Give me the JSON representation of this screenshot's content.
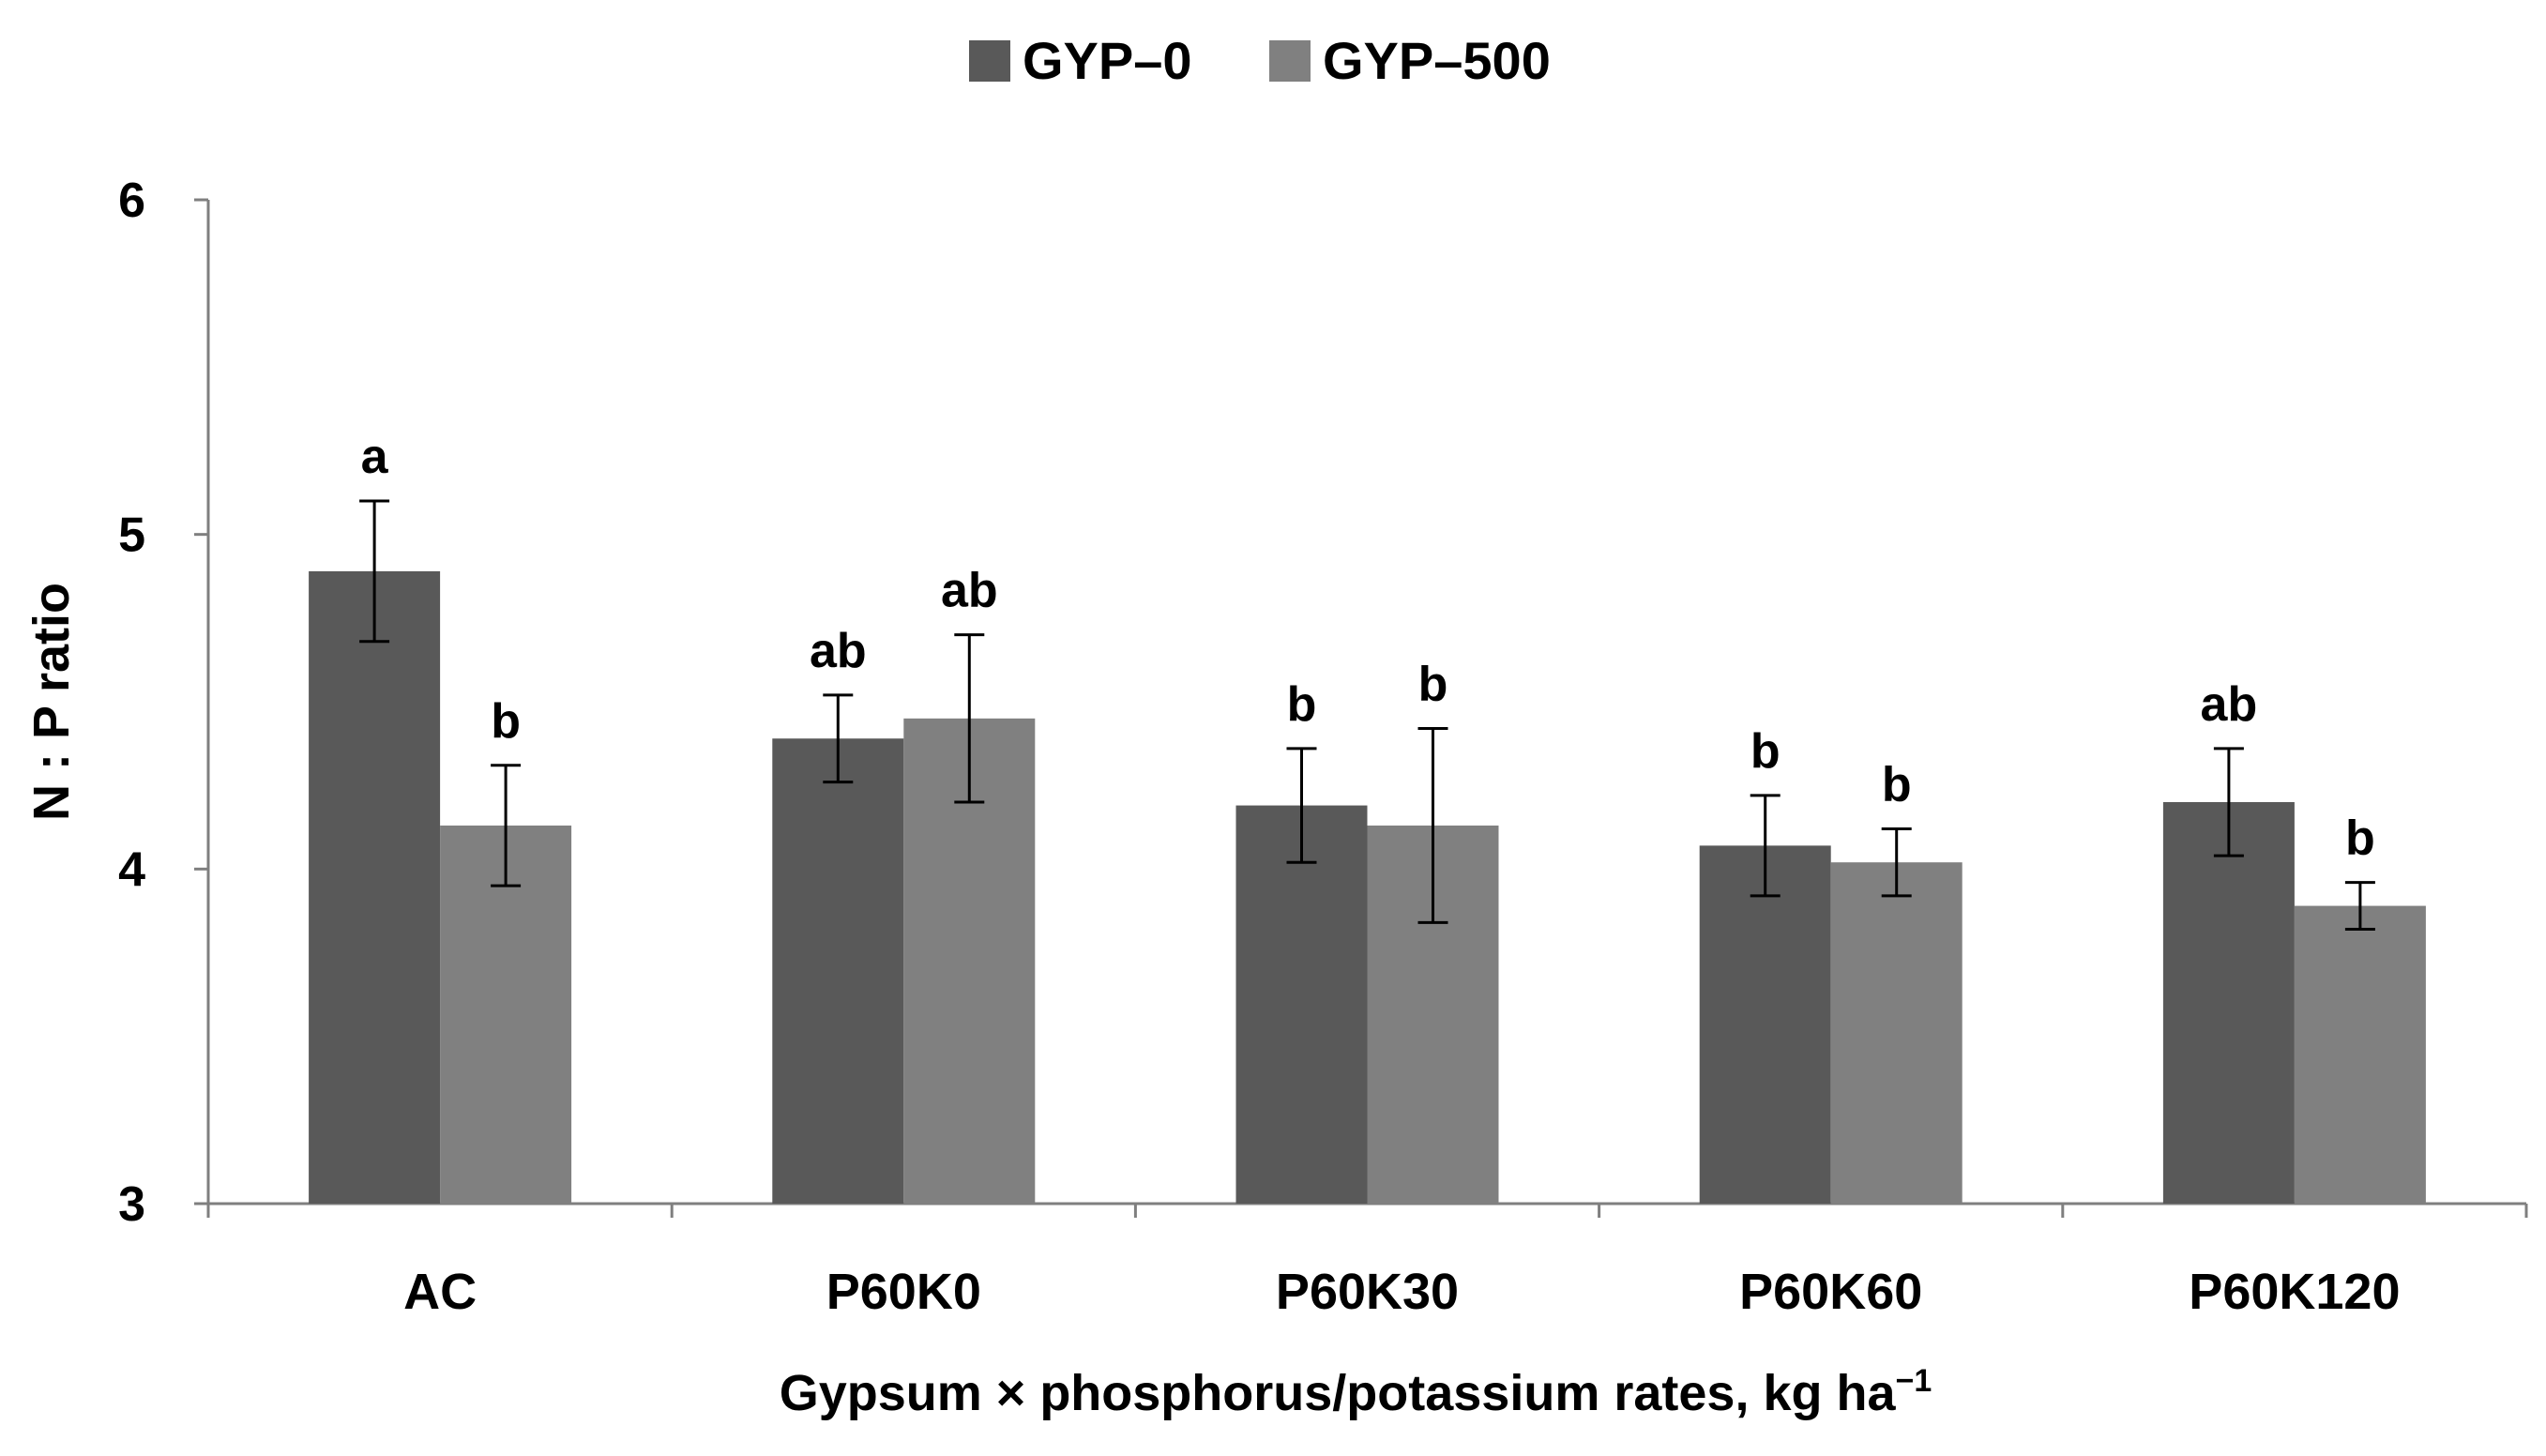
{
  "chart_data": {
    "type": "bar",
    "title": "",
    "xlabel": "Gypsum × phosphorus/potassium  rates, kg ha",
    "xlabel_sup": "−1",
    "ylabel": "N : P ratio",
    "ylim": [
      3,
      6
    ],
    "yticks": [
      "3",
      "4",
      "5",
      "6"
    ],
    "legend_position": "top-center",
    "grid": false,
    "categories": [
      "AC",
      "P60K0",
      "P60K30",
      "P60K60",
      "P60K120"
    ],
    "series": [
      {
        "name": "GYP–0",
        "color": "#595959",
        "values": [
          4.89,
          4.39,
          4.19,
          4.07,
          4.2
        ],
        "errors": [
          0.21,
          0.13,
          0.17,
          0.15,
          0.16
        ],
        "labels": [
          "a",
          "ab",
          "b",
          "b",
          "ab"
        ]
      },
      {
        "name": "GYP–500",
        "color": "#808080",
        "values": [
          4.13,
          4.45,
          4.13,
          4.02,
          3.89
        ],
        "errors": [
          0.18,
          0.25,
          0.29,
          0.1,
          0.07
        ],
        "labels": [
          "b",
          "ab",
          "b",
          "b",
          "b"
        ]
      }
    ]
  }
}
